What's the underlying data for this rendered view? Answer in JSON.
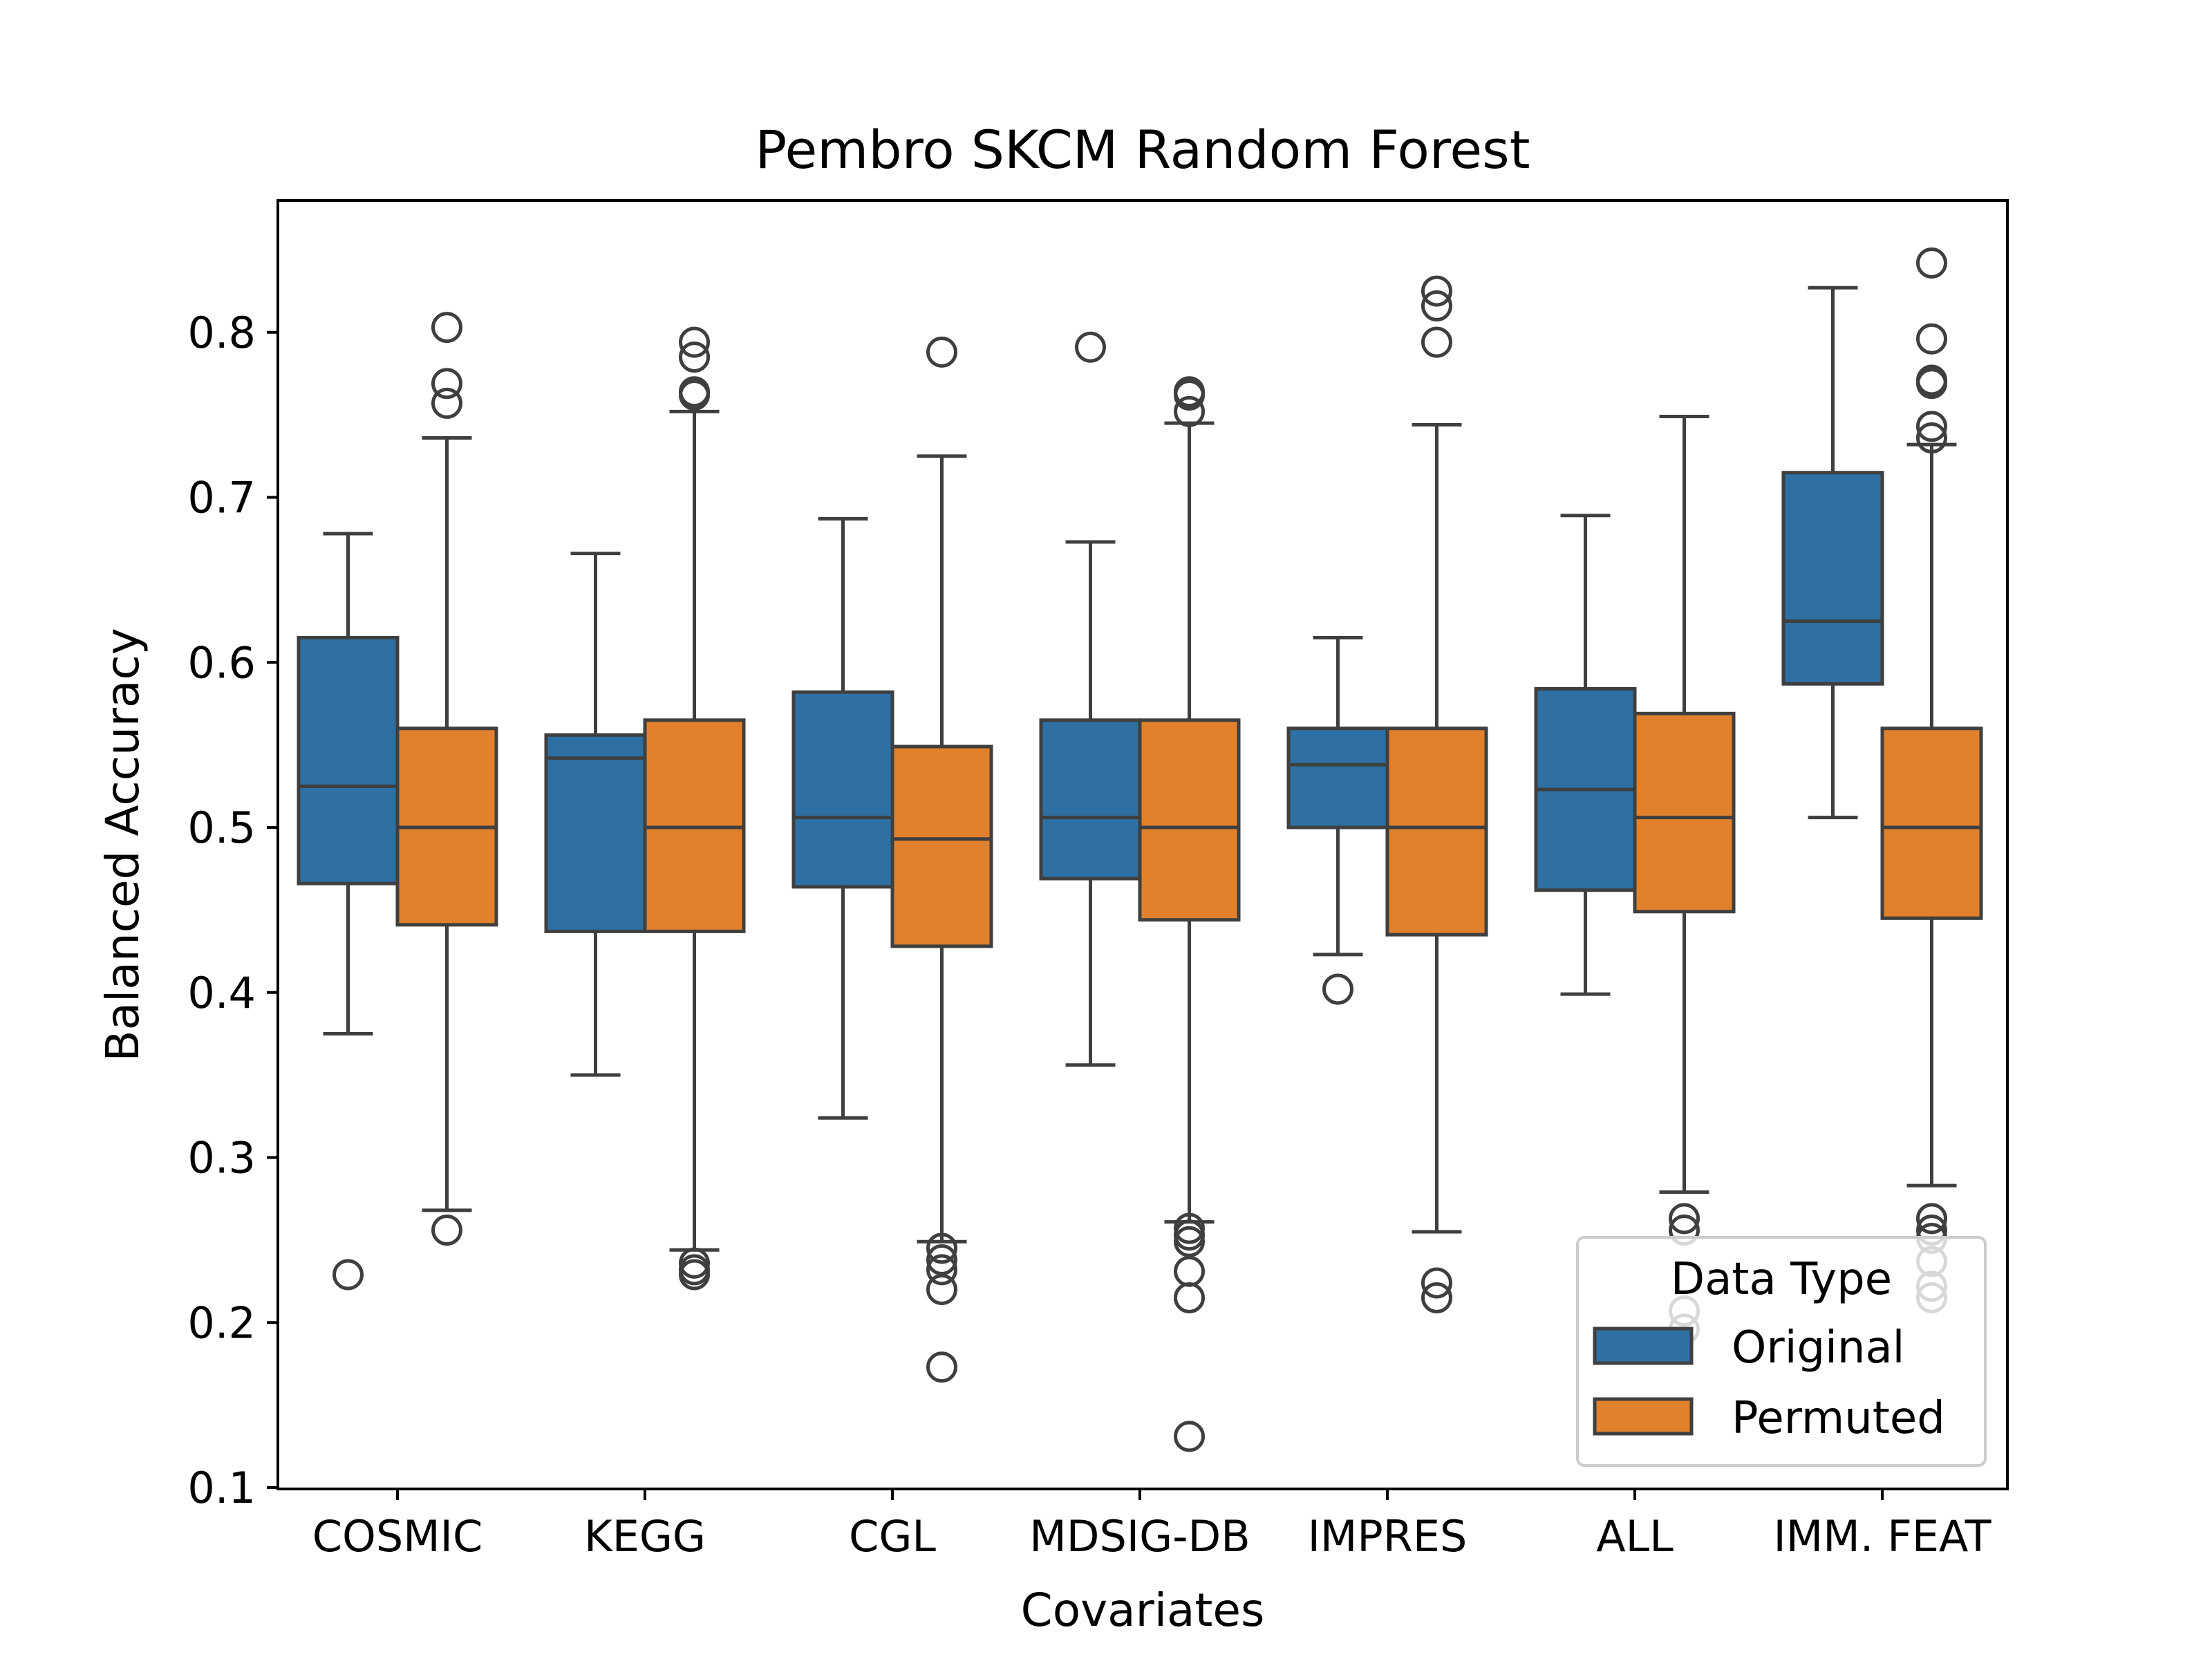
{
  "chart_data": {
    "type": "box",
    "title": "Pembro  SKCM  Random Forest",
    "xlabel": "Covariates",
    "ylabel": "Balanced Accuracy",
    "ylim": [
      0.1,
      0.87
    ],
    "yticks": [
      "0.1",
      "0.2",
      "0.3",
      "0.4",
      "0.5",
      "0.6",
      "0.7",
      "0.8"
    ],
    "categories": [
      "COSMIC",
      "KEGG",
      "CGL",
      "MDSIG-DB",
      "IMPRES",
      "ALL",
      "IMM. FEAT"
    ],
    "grid": false,
    "legend": {
      "title": "Data Type",
      "placement": "lower-right",
      "entries": [
        "Original",
        "Permuted"
      ]
    },
    "series": [
      {
        "name": "Original",
        "color": "#2e70a3",
        "boxes": [
          {
            "whisker_low": 0.375,
            "q1": 0.466,
            "median": 0.525,
            "q3": 0.615,
            "whisker_high": 0.678,
            "outliers": [
              0.229
            ]
          },
          {
            "whisker_low": 0.35,
            "q1": 0.437,
            "median": 0.542,
            "q3": 0.556,
            "whisker_high": 0.666,
            "outliers": []
          },
          {
            "whisker_low": 0.324,
            "q1": 0.464,
            "median": 0.506,
            "q3": 0.582,
            "whisker_high": 0.687,
            "outliers": []
          },
          {
            "whisker_low": 0.356,
            "q1": 0.469,
            "median": 0.506,
            "q3": 0.565,
            "whisker_high": 0.673,
            "outliers": [
              0.791
            ]
          },
          {
            "whisker_low": 0.423,
            "q1": 0.5,
            "median": 0.538,
            "q3": 0.56,
            "whisker_high": 0.615,
            "outliers": [
              0.402
            ]
          },
          {
            "whisker_low": 0.399,
            "q1": 0.462,
            "median": 0.523,
            "q3": 0.584,
            "whisker_high": 0.689,
            "outliers": []
          },
          {
            "whisker_low": 0.506,
            "q1": 0.587,
            "median": 0.625,
            "q3": 0.715,
            "whisker_high": 0.827,
            "outliers": []
          }
        ]
      },
      {
        "name": "Permuted",
        "color": "#e1812c",
        "boxes": [
          {
            "whisker_low": 0.268,
            "q1": 0.441,
            "median": 0.5,
            "q3": 0.56,
            "whisker_high": 0.736,
            "outliers": [
              0.256,
              0.757,
              0.769,
              0.803
            ]
          },
          {
            "whisker_low": 0.244,
            "q1": 0.437,
            "median": 0.5,
            "q3": 0.565,
            "whisker_high": 0.752,
            "outliers": [
              0.229,
              0.232,
              0.236,
              0.762,
              0.764,
              0.785,
              0.794
            ]
          },
          {
            "whisker_low": 0.249,
            "q1": 0.428,
            "median": 0.493,
            "q3": 0.549,
            "whisker_high": 0.725,
            "outliers": [
              0.173,
              0.22,
              0.232,
              0.238,
              0.245,
              0.788
            ]
          },
          {
            "whisker_low": 0.261,
            "q1": 0.444,
            "median": 0.5,
            "q3": 0.565,
            "whisker_high": 0.745,
            "outliers": [
              0.131,
              0.215,
              0.231,
              0.249,
              0.253,
              0.257,
              0.752,
              0.762,
              0.764
            ]
          },
          {
            "whisker_low": 0.255,
            "q1": 0.435,
            "median": 0.5,
            "q3": 0.56,
            "whisker_high": 0.744,
            "outliers": [
              0.215,
              0.224,
              0.794,
              0.816,
              0.825
            ]
          },
          {
            "whisker_low": 0.279,
            "q1": 0.449,
            "median": 0.506,
            "q3": 0.569,
            "whisker_high": 0.749,
            "outliers": [
              0.196,
              0.207,
              0.256,
              0.263
            ]
          },
          {
            "whisker_low": 0.283,
            "q1": 0.445,
            "median": 0.5,
            "q3": 0.56,
            "whisker_high": 0.732,
            "outliers": [
              0.215,
              0.222,
              0.237,
              0.251,
              0.256,
              0.263,
              0.736,
              0.743,
              0.769,
              0.771,
              0.796,
              0.842
            ]
          }
        ]
      }
    ]
  }
}
